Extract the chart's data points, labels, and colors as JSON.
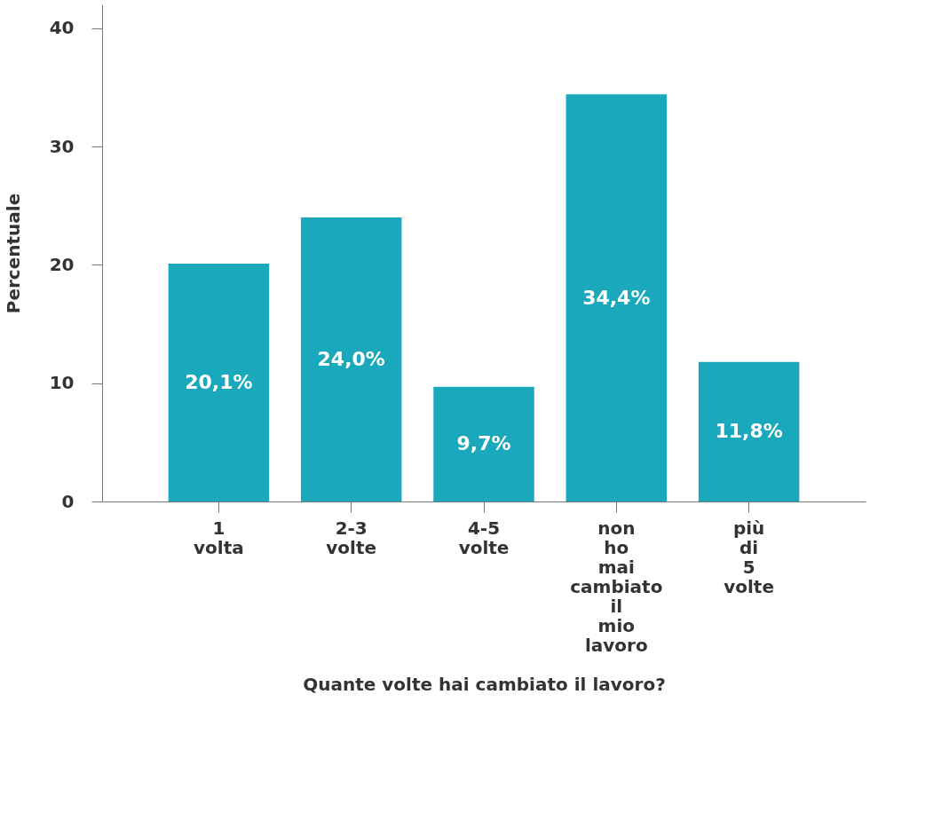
{
  "chart_data": {
    "type": "bar",
    "xlabel": "Quante volte hai cambiato il lavoro?",
    "ylabel": "Percentuale",
    "categories": [
      "1 volta",
      "2-3 volte",
      "4-5 volte",
      "non ho mai cambiato il mio lavoro",
      "più di 5 volte"
    ],
    "values": [
      20.1,
      24.0,
      9.7,
      34.4,
      11.8
    ],
    "value_labels": [
      "20,1%",
      "24,0%",
      "9,7%",
      "34,4%",
      "11,8%"
    ],
    "color": "#1aa8bc",
    "ylim": [
      0,
      42
    ],
    "yticks": [
      0,
      10,
      20,
      30,
      40
    ],
    "grid": false
  }
}
